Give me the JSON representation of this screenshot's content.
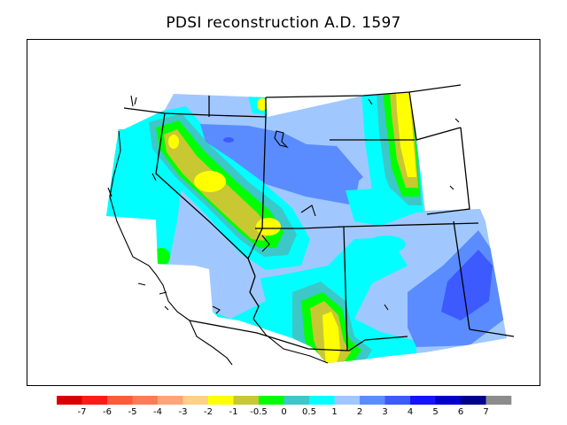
{
  "title": "PDSI reconstruction A.D. 1597",
  "legend": {
    "colors": [
      "#d90000",
      "#ff1a1a",
      "#ff5a3c",
      "#ff7a5a",
      "#ffa37a",
      "#ffd08a",
      "#ffff00",
      "#c8c832",
      "#00ff00",
      "#3cc8c8",
      "#00ffff",
      "#a0c8ff",
      "#5a8cff",
      "#3c5aff",
      "#1414ff",
      "#0000c8",
      "#00008c",
      "#8c8c8c"
    ],
    "labels": [
      "-7",
      "-6",
      "-5",
      "-4",
      "-3",
      "-2",
      "-1",
      "-0.5",
      "0",
      "0.5",
      "1",
      "2",
      "3",
      "4",
      "5",
      "6",
      "7"
    ]
  },
  "colors": {
    "c05": "#3cc8c8",
    "c1": "#00ffff",
    "c2": "#a0c8ff",
    "c3": "#5a8cff",
    "c4": "#3c5aff",
    "cm05": "#c8c832",
    "cm1": "#ffff00",
    "c0": "#00ff00",
    "border": "#000000"
  }
}
